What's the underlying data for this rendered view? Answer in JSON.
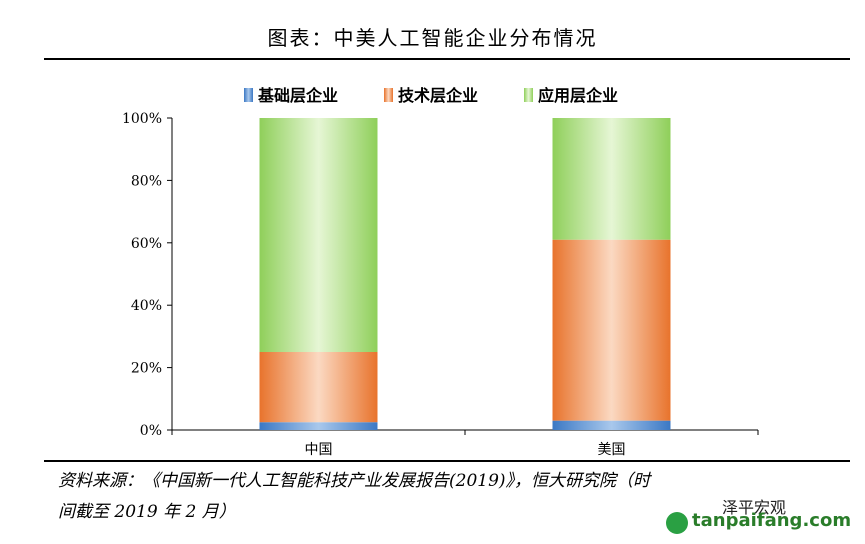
{
  "title": "图表：中美人工智能企业分布情况",
  "source_line1": "资料来源：《中国新一代人工智能科技产业发展报告(2019)》，恒大研究院（时",
  "source_line2": "间截至 2019 年 2 月）",
  "watermark_wechat": "泽平宏观",
  "watermark_site": "tanpaifang.com",
  "colors": {
    "foundation": "#3b78c4",
    "technology": "#e8732c",
    "application": "#8fcf5a"
  },
  "chart_data": {
    "type": "bar",
    "stacked": true,
    "percent": true,
    "categories": [
      "中国",
      "美国"
    ],
    "series": [
      {
        "name": "基础层企业",
        "values": [
          2.5,
          3.0
        ]
      },
      {
        "name": "技术层企业",
        "values": [
          22.5,
          58.0
        ]
      },
      {
        "name": "应用层企业",
        "values": [
          75.0,
          39.0
        ]
      }
    ],
    "yticks": [
      "0%",
      "20%",
      "40%",
      "60%",
      "80%",
      "100%"
    ],
    "ylim": [
      0,
      100
    ],
    "legend": "top",
    "grid": false
  }
}
